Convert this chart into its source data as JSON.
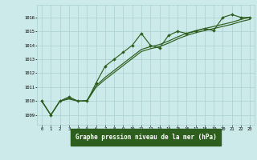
{
  "background_color": "#cceaea",
  "grid_color": "#aacfcf",
  "line_color": "#2d5e1e",
  "xlabel": "Graphe pression niveau de la mer (hPa)",
  "x_ticks": [
    0,
    1,
    2,
    3,
    4,
    5,
    6,
    7,
    8,
    9,
    10,
    11,
    12,
    13,
    14,
    15,
    16,
    17,
    18,
    19,
    20,
    21,
    22,
    23
  ],
  "y_ticks": [
    1009,
    1010,
    1011,
    1012,
    1013,
    1014,
    1015,
    1016
  ],
  "ylim": [
    1008.3,
    1016.9
  ],
  "xlim": [
    -0.5,
    23.5
  ],
  "series_jagged": [
    1010.0,
    1009.0,
    1010.0,
    1010.3,
    1010.0,
    1010.0,
    1011.3,
    1012.5,
    1013.0,
    1013.5,
    1014.0,
    1014.85,
    1014.0,
    1013.8,
    1014.7,
    1015.0,
    1014.85,
    1015.0,
    1015.2,
    1015.05,
    1016.0,
    1016.2,
    1016.0,
    1016.0
  ],
  "series_smooth1": [
    1010.0,
    1009.0,
    1010.0,
    1010.2,
    1010.0,
    1010.05,
    1011.1,
    1011.7,
    1012.2,
    1012.7,
    1013.2,
    1013.7,
    1013.9,
    1014.05,
    1014.3,
    1014.6,
    1014.85,
    1015.05,
    1015.2,
    1015.35,
    1015.5,
    1015.65,
    1015.85,
    1016.0
  ],
  "series_smooth2": [
    1010.0,
    1009.0,
    1010.0,
    1010.15,
    1010.0,
    1010.0,
    1011.0,
    1011.55,
    1012.05,
    1012.55,
    1013.05,
    1013.55,
    1013.75,
    1013.9,
    1014.15,
    1014.45,
    1014.7,
    1014.9,
    1015.05,
    1015.2,
    1015.35,
    1015.5,
    1015.7,
    1015.85
  ]
}
